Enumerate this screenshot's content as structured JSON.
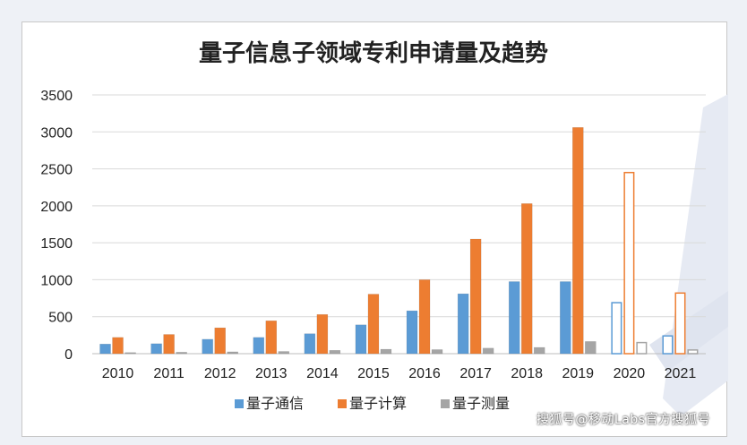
{
  "chart_data": {
    "type": "bar",
    "title": "量子信息子领域专利申请量及趋势",
    "categories": [
      "2010",
      "2011",
      "2012",
      "2013",
      "2014",
      "2015",
      "2016",
      "2017",
      "2018",
      "2019",
      "2020",
      "2021"
    ],
    "series": [
      {
        "name": "量子通信",
        "color": "#5b9bd5",
        "values": [
          130,
          135,
          195,
          220,
          270,
          390,
          580,
          810,
          975,
          975,
          690,
          240
        ]
      },
      {
        "name": "量子计算",
        "color": "#ed7d31",
        "values": [
          220,
          260,
          350,
          445,
          530,
          805,
          1000,
          1550,
          2030,
          3060,
          2450,
          820
        ]
      },
      {
        "name": "量子测量",
        "color": "#a5a5a5",
        "values": [
          15,
          20,
          25,
          30,
          45,
          60,
          55,
          75,
          85,
          165,
          150,
          50
        ]
      }
    ],
    "projected_categories": [
      "2020",
      "2021"
    ],
    "ylim": [
      0,
      3500
    ],
    "yticks": [
      "0",
      "500",
      "1000",
      "1500",
      "2000",
      "2500",
      "3000",
      "3500"
    ],
    "xlabel": "",
    "ylabel": "",
    "grid": true,
    "legend_position": "bottom"
  },
  "watermark": "搜狐号@移动Labs官方搜狐号"
}
